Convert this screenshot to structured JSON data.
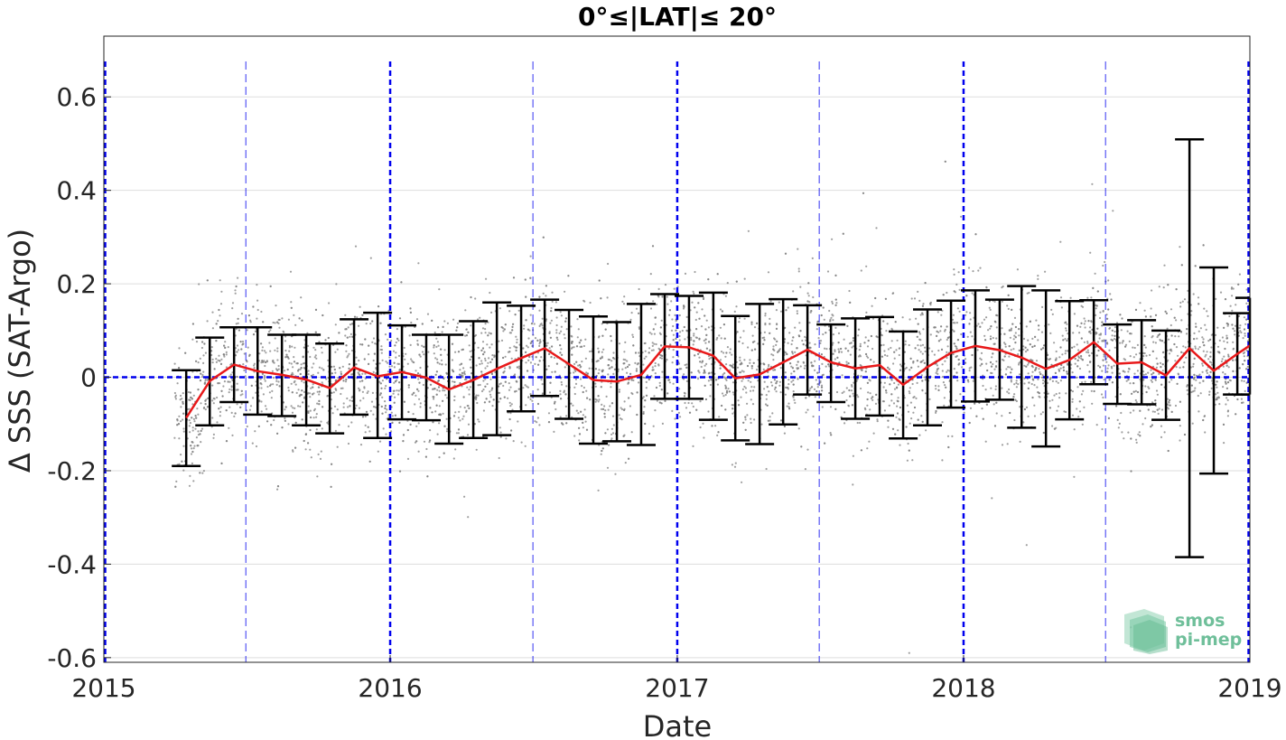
{
  "chart_data": {
    "type": "scatter",
    "title": "0°≤|LAT|≤ 20°",
    "xlabel": "Date",
    "ylabel": "Δ SSS (SAT-Argo)",
    "xlim": [
      "2015-01-01",
      "2019-01-01"
    ],
    "ylim": [
      -0.61,
      0.73
    ],
    "x_ticks": [
      {
        "value": "2015-01-01",
        "label": "2015"
      },
      {
        "value": "2016-01-01",
        "label": "2016"
      },
      {
        "value": "2017-01-01",
        "label": "2017"
      },
      {
        "value": "2018-01-01",
        "label": "2018"
      },
      {
        "value": "2019-01-01",
        "label": "2019"
      }
    ],
    "y_ticks": [
      {
        "value": -0.6,
        "label": "-0.6"
      },
      {
        "value": -0.4,
        "label": "-0.4"
      },
      {
        "value": -0.2,
        "label": "-0.2"
      },
      {
        "value": 0,
        "label": "0"
      },
      {
        "value": 0.2,
        "label": "0.2"
      },
      {
        "value": 0.4,
        "label": "0.4"
      },
      {
        "value": 0.6,
        "label": "0.6"
      }
    ],
    "grid": true,
    "year_lines": [
      "2015-01-01",
      "2016-01-01",
      "2017-01-01",
      "2018-01-01",
      "2019-01-01"
    ],
    "half_year_lines": [
      "2015-07-01",
      "2016-07-01",
      "2017-07-01",
      "2018-07-01"
    ],
    "zero_line": 0,
    "colors": {
      "mean_line": "#e8191a",
      "error_bars": "#000000",
      "scatter": "#808080",
      "reference_lines": "#0000ee",
      "grid": "#dddddd",
      "logo": "#6fbf9a"
    },
    "series": [
      {
        "type": "errorbar",
        "points": [
          {
            "x": "2015-04-16",
            "mean": -0.087,
            "low": -0.19,
            "high": 0.015
          },
          {
            "x": "2015-05-16",
            "mean": -0.008,
            "low": -0.103,
            "high": 0.085
          },
          {
            "x": "2015-06-16",
            "mean": 0.027,
            "low": -0.053,
            "high": 0.107
          },
          {
            "x": "2015-07-16",
            "mean": 0.013,
            "low": -0.08,
            "high": 0.107
          },
          {
            "x": "2015-08-16",
            "mean": 0.005,
            "low": -0.083,
            "high": 0.091
          },
          {
            "x": "2015-09-16",
            "mean": -0.005,
            "low": -0.103,
            "high": 0.091
          },
          {
            "x": "2015-10-16",
            "mean": -0.023,
            "low": -0.12,
            "high": 0.072
          },
          {
            "x": "2015-11-16",
            "mean": 0.021,
            "low": -0.08,
            "high": 0.124
          },
          {
            "x": "2015-12-16",
            "mean": 0.002,
            "low": -0.13,
            "high": 0.138
          },
          {
            "x": "2016-01-16",
            "mean": 0.011,
            "low": -0.09,
            "high": 0.111
          },
          {
            "x": "2016-02-16",
            "mean": -0.001,
            "low": -0.092,
            "high": 0.091
          },
          {
            "x": "2016-03-16",
            "mean": -0.026,
            "low": -0.142,
            "high": 0.091
          },
          {
            "x": "2016-04-16",
            "mean": -0.006,
            "low": -0.13,
            "high": 0.12
          },
          {
            "x": "2016-05-16",
            "mean": 0.018,
            "low": -0.124,
            "high": 0.16
          },
          {
            "x": "2016-06-16",
            "mean": 0.041,
            "low": -0.073,
            "high": 0.153
          },
          {
            "x": "2016-07-16",
            "mean": 0.062,
            "low": -0.04,
            "high": 0.166
          },
          {
            "x": "2016-08-16",
            "mean": 0.028,
            "low": -0.089,
            "high": 0.144
          },
          {
            "x": "2016-09-16",
            "mean": -0.006,
            "low": -0.142,
            "high": 0.13
          },
          {
            "x": "2016-10-16",
            "mean": -0.009,
            "low": -0.137,
            "high": 0.118
          },
          {
            "x": "2016-11-16",
            "mean": 0.005,
            "low": -0.145,
            "high": 0.157
          },
          {
            "x": "2016-12-16",
            "mean": 0.066,
            "low": -0.046,
            "high": 0.178
          },
          {
            "x": "2017-01-16",
            "mean": 0.064,
            "low": -0.046,
            "high": 0.174
          },
          {
            "x": "2017-02-16",
            "mean": 0.046,
            "low": -0.091,
            "high": 0.181
          },
          {
            "x": "2017-03-16",
            "mean": -0.002,
            "low": -0.135,
            "high": 0.131
          },
          {
            "x": "2017-04-16",
            "mean": 0.006,
            "low": -0.143,
            "high": 0.157
          },
          {
            "x": "2017-05-16",
            "mean": 0.032,
            "low": -0.101,
            "high": 0.167
          },
          {
            "x": "2017-06-16",
            "mean": 0.059,
            "low": -0.037,
            "high": 0.154
          },
          {
            "x": "2017-07-16",
            "mean": 0.032,
            "low": -0.053,
            "high": 0.113
          },
          {
            "x": "2017-08-16",
            "mean": 0.019,
            "low": -0.089,
            "high": 0.126
          },
          {
            "x": "2017-09-16",
            "mean": 0.026,
            "low": -0.082,
            "high": 0.129
          },
          {
            "x": "2017-10-16",
            "mean": -0.016,
            "low": -0.131,
            "high": 0.098
          },
          {
            "x": "2017-11-16",
            "mean": 0.022,
            "low": -0.103,
            "high": 0.145
          },
          {
            "x": "2017-12-16",
            "mean": 0.052,
            "low": -0.065,
            "high": 0.164
          },
          {
            "x": "2018-01-16",
            "mean": 0.067,
            "low": -0.052,
            "high": 0.186
          },
          {
            "x": "2018-02-16",
            "mean": 0.058,
            "low": -0.048,
            "high": 0.166
          },
          {
            "x": "2018-03-16",
            "mean": 0.042,
            "low": -0.108,
            "high": 0.195
          },
          {
            "x": "2018-04-16",
            "mean": 0.018,
            "low": -0.148,
            "high": 0.186
          },
          {
            "x": "2018-05-16",
            "mean": 0.037,
            "low": -0.09,
            "high": 0.163
          },
          {
            "x": "2018-06-16",
            "mean": 0.075,
            "low": -0.015,
            "high": 0.165
          },
          {
            "x": "2018-07-16",
            "mean": 0.029,
            "low": -0.057,
            "high": 0.113
          },
          {
            "x": "2018-08-16",
            "mean": 0.032,
            "low": -0.058,
            "high": 0.122
          },
          {
            "x": "2018-09-16",
            "mean": 0.004,
            "low": -0.091,
            "high": 0.1
          },
          {
            "x": "2018-10-16",
            "mean": 0.062,
            "low": -0.385,
            "high": 0.509
          },
          {
            "x": "2018-11-16",
            "mean": 0.014,
            "low": -0.206,
            "high": 0.235
          },
          {
            "x": "2018-12-16",
            "mean": 0.05,
            "low": -0.037,
            "high": 0.137
          },
          {
            "x": "2019-01-01",
            "mean": 0.068,
            "low": -0.037,
            "high": 0.17
          }
        ]
      },
      {
        "type": "line",
        "x_from": "errorbar.x",
        "y_from": "errorbar.mean"
      },
      {
        "type": "scatter",
        "x_range": [
          "2015-04-01",
          "2019-01-01"
        ],
        "y_distribution": "spread around the monthly mean, mostly within about ±0.25, sparse outliers to about ±0.6"
      }
    ]
  },
  "logo": {
    "line1": "smos",
    "line2": "pi-mep"
  }
}
